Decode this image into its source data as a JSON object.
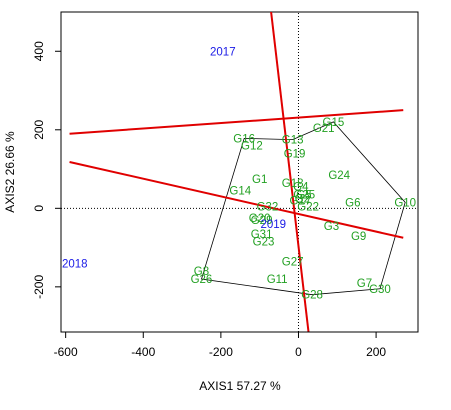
{
  "chart_data": {
    "type": "scatter",
    "title": "",
    "xlabel": "AXIS1 57.27 %",
    "ylabel": "AXIS2 26.66 %",
    "xlim": [
      -612,
      308
    ],
    "ylim": [
      -315,
      500
    ],
    "x_ticks": [
      -600,
      -400,
      -200,
      0,
      200
    ],
    "y_ticks": [
      -200,
      0,
      200,
      400
    ],
    "x_tick_labels": [
      "-600",
      "-400",
      "-200",
      "0",
      "200"
    ],
    "y_tick_labels": [
      "-200",
      "0",
      "200",
      "400"
    ],
    "grid": false,
    "reference_lines": {
      "x": 0,
      "y": 0,
      "style": "dotted"
    },
    "colors": {
      "genotype": "#22a022",
      "environment": "#1a1ae6",
      "vector": "#e00000",
      "hull": "#000000"
    },
    "genotypes": [
      {
        "label": "G1",
        "x": -100,
        "y": 75
      },
      {
        "label": "G2",
        "x": 10,
        "y": 25
      },
      {
        "label": "G3",
        "x": 85,
        "y": -45
      },
      {
        "label": "G4",
        "x": 6,
        "y": 55
      },
      {
        "label": "G5",
        "x": 14,
        "y": 35
      },
      {
        "label": "G6",
        "x": 140,
        "y": 15
      },
      {
        "label": "G7",
        "x": 170,
        "y": -190
      },
      {
        "label": "G8",
        "x": -250,
        "y": -160
      },
      {
        "label": "G9",
        "x": 155,
        "y": -70
      },
      {
        "label": "G10",
        "x": 275,
        "y": 15
      },
      {
        "label": "G11",
        "x": -55,
        "y": -180
      },
      {
        "label": "G12",
        "x": -120,
        "y": 160
      },
      {
        "label": "G13",
        "x": -15,
        "y": 175
      },
      {
        "label": "G14",
        "x": -150,
        "y": 45
      },
      {
        "label": "G15",
        "x": 90,
        "y": 220
      },
      {
        "label": "G16",
        "x": -140,
        "y": 178
      },
      {
        "label": "G17",
        "x": 5,
        "y": 20
      },
      {
        "label": "G18",
        "x": -15,
        "y": 65
      },
      {
        "label": "G19",
        "x": -10,
        "y": 140
      },
      {
        "label": "G20",
        "x": -100,
        "y": -25
      },
      {
        "label": "G21",
        "x": 65,
        "y": 205
      },
      {
        "label": "G22",
        "x": 25,
        "y": 5
      },
      {
        "label": "G23",
        "x": -90,
        "y": -85
      },
      {
        "label": "G24",
        "x": 105,
        "y": 85
      },
      {
        "label": "G25",
        "x": 15,
        "y": 35
      },
      {
        "label": "G26",
        "x": -250,
        "y": -180
      },
      {
        "label": "G27",
        "x": -15,
        "y": -135
      },
      {
        "label": "G28",
        "x": 35,
        "y": -220
      },
      {
        "label": "G29",
        "x": -95,
        "y": -30
      },
      {
        "label": "G30",
        "x": 210,
        "y": -205
      },
      {
        "label": "G31",
        "x": -95,
        "y": -65
      },
      {
        "label": "G32",
        "x": -80,
        "y": 5
      }
    ],
    "environments": [
      {
        "label": "2017",
        "x": -195,
        "y": 400,
        "vector_end": [
          -80,
          580
        ],
        "vector_start": [
          30,
          -350
        ]
      },
      {
        "label": "2018",
        "x": -612,
        "y": -140,
        "vector_end": [
          -590,
          118
        ],
        "vector_start": [
          270,
          -75
        ]
      },
      {
        "label": "2019",
        "x": -65,
        "y": -40,
        "vector_end": [
          -590,
          190
        ],
        "vector_start": [
          270,
          250
        ]
      }
    ],
    "hull": [
      {
        "x": 275,
        "y": 15
      },
      {
        "x": 210,
        "y": -205
      },
      {
        "x": 35,
        "y": -220
      },
      {
        "x": -250,
        "y": -180
      },
      {
        "x": -140,
        "y": 178
      },
      {
        "x": -15,
        "y": 175
      },
      {
        "x": 90,
        "y": 220
      }
    ]
  }
}
